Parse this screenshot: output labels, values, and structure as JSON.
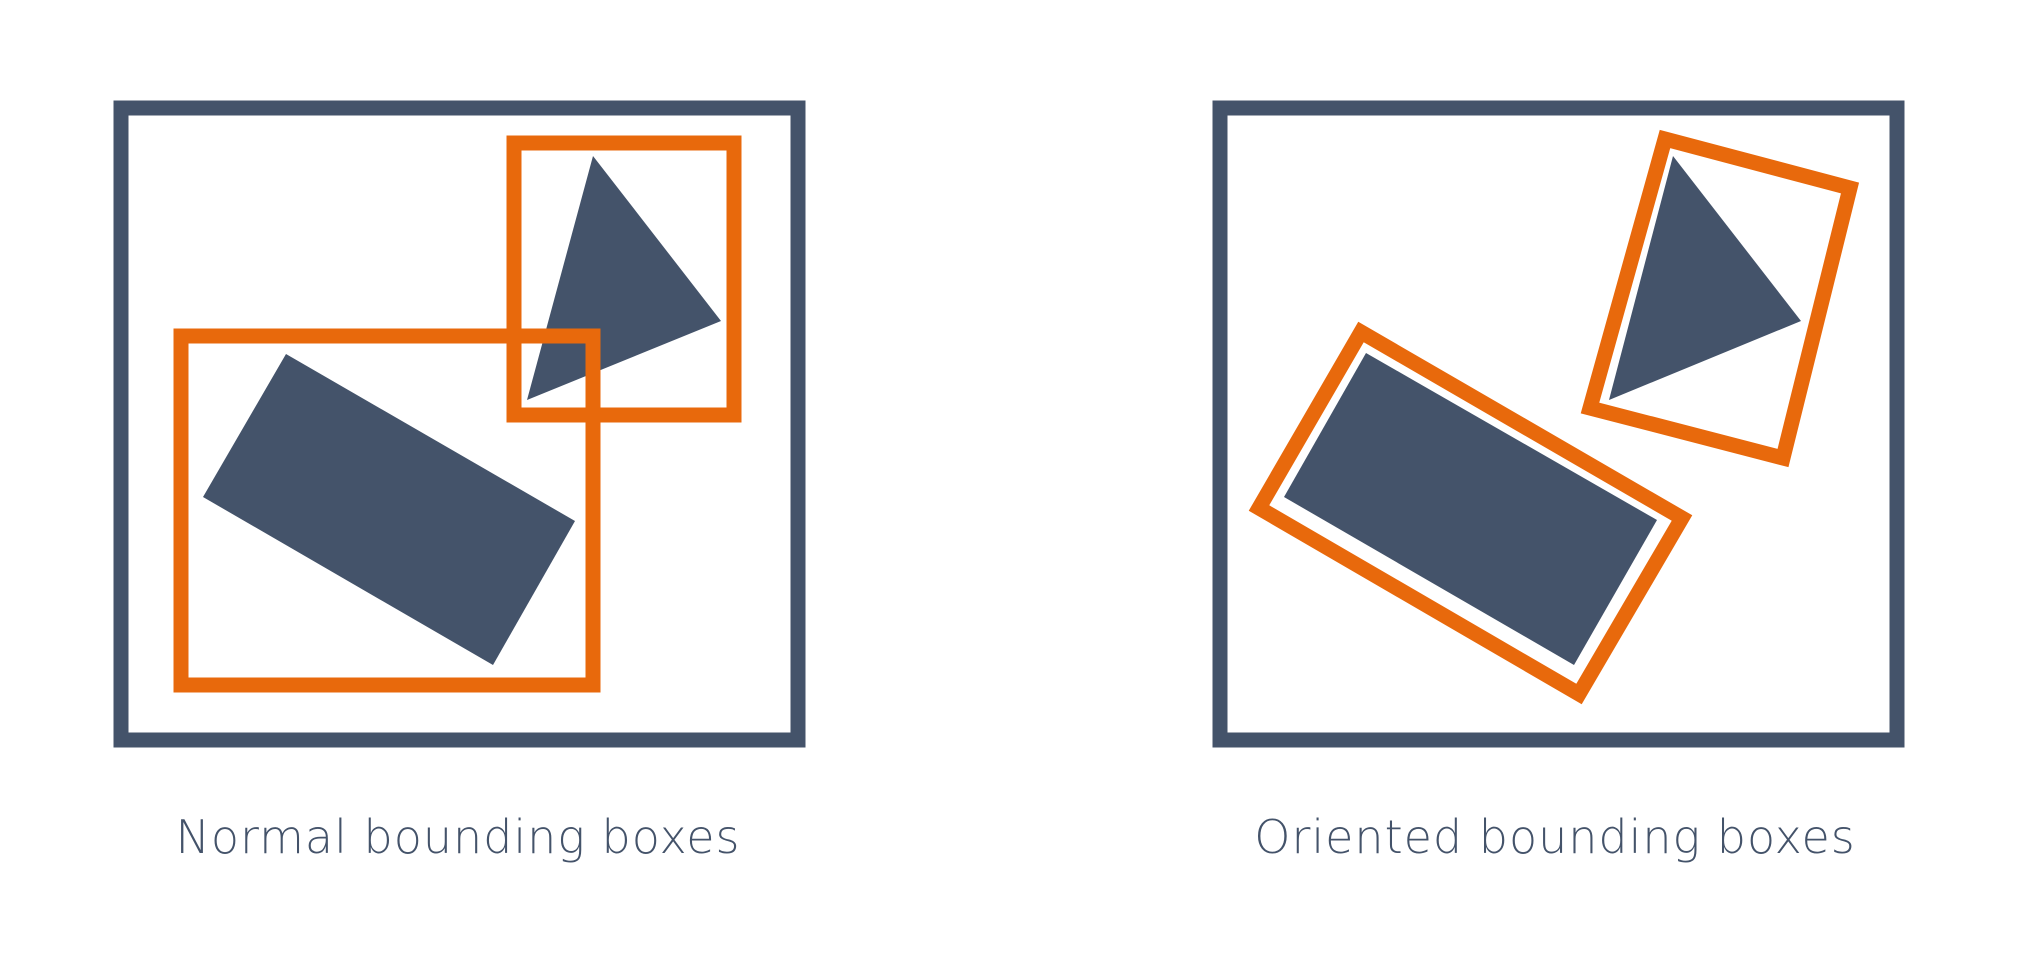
{
  "panels": [
    {
      "caption": "Normal bounding boxes"
    },
    {
      "caption": "Oriented bounding boxes"
    }
  ],
  "colors": {
    "shape": "#44536a",
    "frame": "#44536a",
    "box": "#e8690c",
    "background": "#ffffff",
    "caption": "#44536a"
  }
}
